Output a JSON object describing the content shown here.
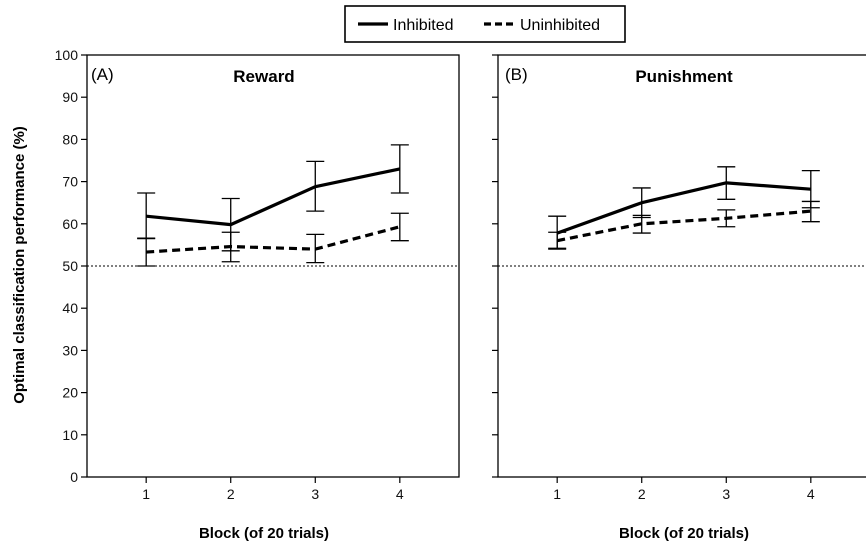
{
  "legend": {
    "items": [
      {
        "label": "Inhibited",
        "style": "solid"
      },
      {
        "label": "Uninhibited",
        "style": "dashed"
      }
    ]
  },
  "y_axis_label": "Optimal classification performance (%)",
  "chart_data": [
    {
      "type": "line",
      "panel_letter": "(A)",
      "title": "Reward",
      "xlabel": "Block (of 20 trials)",
      "x": [
        1,
        2,
        3,
        4
      ],
      "xlim": [
        0.3,
        4.7
      ],
      "ylim": [
        0,
        100
      ],
      "yticks": [
        0,
        10,
        20,
        30,
        40,
        50,
        60,
        70,
        80,
        90,
        100
      ],
      "reference_line": 50,
      "series": [
        {
          "name": "Inhibited",
          "dash": "solid",
          "values": [
            61.8,
            59.8,
            68.8,
            73.0
          ],
          "err_low": [
            56.5,
            53.6,
            63.0,
            67.3
          ],
          "err_high": [
            67.3,
            66.0,
            74.8,
            78.7
          ]
        },
        {
          "name": "Uninhibited",
          "dash": "dashed",
          "values": [
            53.3,
            54.6,
            54.0,
            59.3
          ],
          "err_low": [
            50.0,
            51.0,
            50.8,
            56.0
          ],
          "err_high": [
            56.6,
            58.0,
            57.5,
            62.5
          ]
        }
      ]
    },
    {
      "type": "line",
      "panel_letter": "(B)",
      "title": "Punishment",
      "xlabel": "Block (of 20 trials)",
      "x": [
        1,
        2,
        3,
        4
      ],
      "xlim": [
        0.3,
        4.7
      ],
      "ylim": [
        0,
        100
      ],
      "yticks": [
        0,
        10,
        20,
        30,
        40,
        50,
        60,
        70,
        80,
        90,
        100
      ],
      "reference_line": 50,
      "series": [
        {
          "name": "Inhibited",
          "dash": "solid",
          "values": [
            57.8,
            65.0,
            69.7,
            68.2
          ],
          "err_low": [
            54.2,
            61.5,
            65.8,
            63.8
          ],
          "err_high": [
            61.8,
            68.5,
            73.5,
            72.6
          ]
        },
        {
          "name": "Uninhibited",
          "dash": "dashed",
          "values": [
            56.0,
            60.0,
            61.3,
            63.0
          ],
          "err_low": [
            54.0,
            57.8,
            59.3,
            60.5
          ],
          "err_high": [
            58.0,
            62.0,
            63.3,
            65.3
          ]
        }
      ]
    }
  ]
}
